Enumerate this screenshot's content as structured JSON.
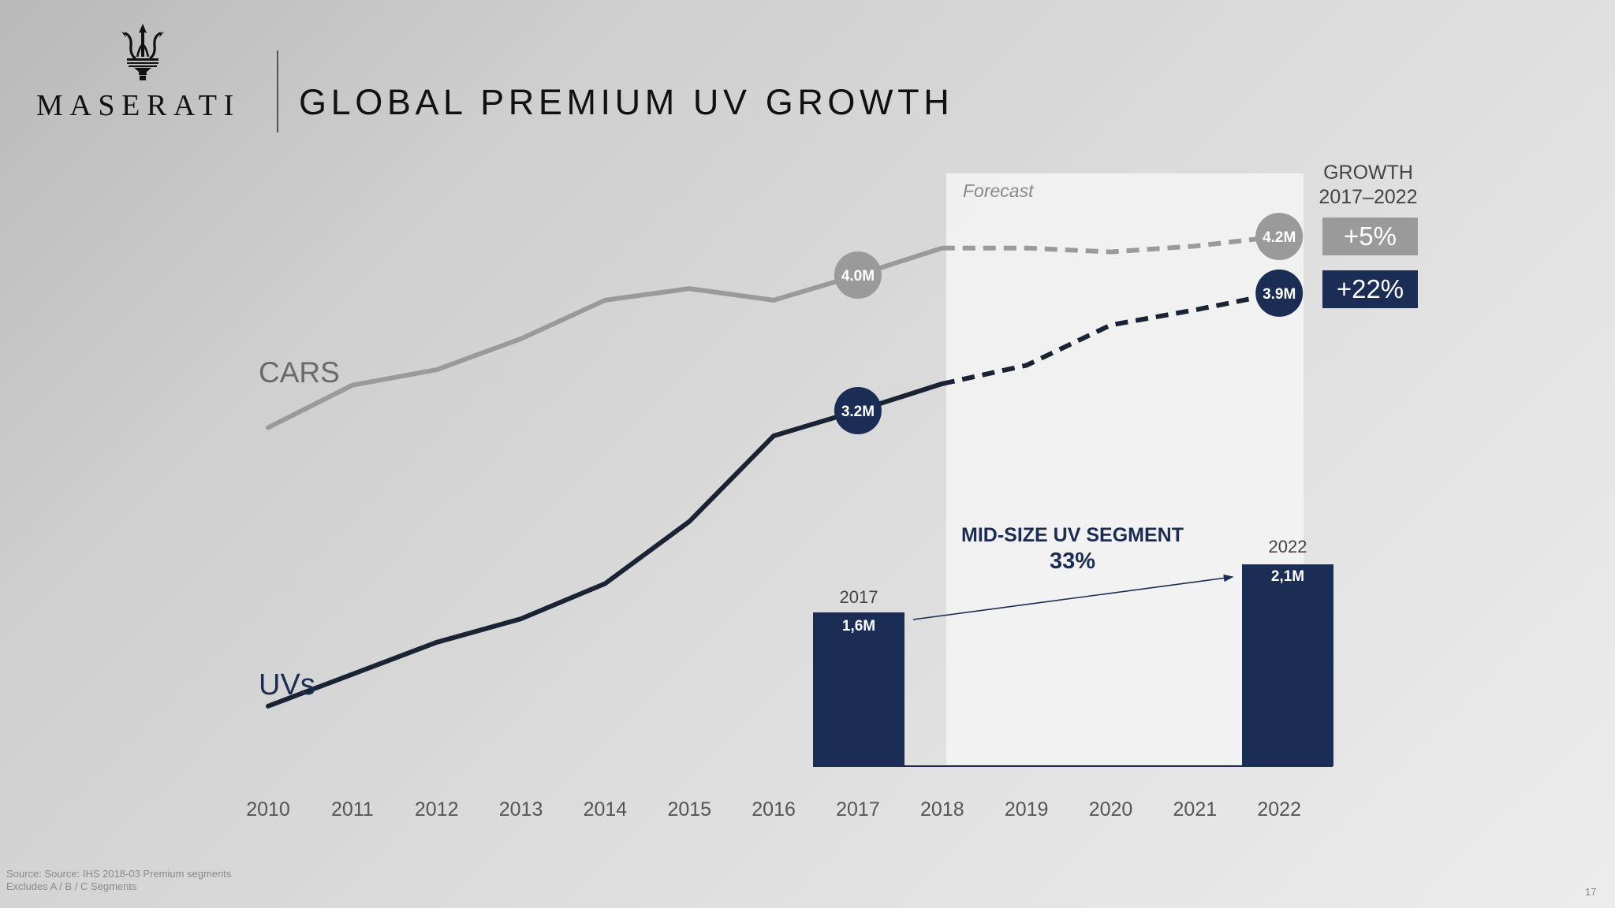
{
  "header": {
    "brand": "MASERATI",
    "title": "GLOBAL PREMIUM UV GROWTH",
    "logo_icon": "trident-icon"
  },
  "chart_data": {
    "type": "line",
    "title": "GLOBAL PREMIUM UV GROWTH",
    "xlabel": "",
    "ylabel": "",
    "x": [
      "2010",
      "2011",
      "2012",
      "2013",
      "2014",
      "2015",
      "2016",
      "2017",
      "2018",
      "2019",
      "2020",
      "2021",
      "2022"
    ],
    "forecast_region": {
      "label": "Forecast",
      "from": "2018",
      "to": "2022"
    },
    "series": [
      {
        "name": "CARS",
        "color": "#9a9a9a",
        "values": [
          3.21,
          3.43,
          3.51,
          3.67,
          3.87,
          3.93,
          3.87,
          4.0,
          4.14,
          4.14,
          4.12,
          4.15,
          4.2
        ],
        "forecast_from_index": 8,
        "labeled_points": [
          {
            "x": "2017",
            "label": "4.0M"
          },
          {
            "x": "2022",
            "label": "4.2M"
          }
        ]
      },
      {
        "name": "UVs",
        "color": "#1b2d54",
        "values": [
          1.44,
          1.63,
          1.82,
          1.96,
          2.17,
          2.54,
          3.05,
          3.2,
          3.36,
          3.47,
          3.71,
          3.8,
          3.9
        ],
        "forecast_from_index": 8,
        "labeled_points": [
          {
            "x": "2017",
            "label": "3.2M"
          },
          {
            "x": "2022",
            "label": "3.9M"
          }
        ]
      }
    ],
    "growth": {
      "heading_line1": "GROWTH",
      "heading_line2": "2017–2022",
      "cars": "+5%",
      "uvs": "+22%"
    },
    "inset": {
      "type": "bar",
      "title": "MID-SIZE UV SEGMENT",
      "change": "33%",
      "categories": [
        "2017",
        "2022"
      ],
      "values": [
        1.6,
        2.1
      ],
      "value_labels": [
        "1,6M",
        "2,1M"
      ],
      "color": "#1b2d54"
    }
  },
  "footer": {
    "source_line1": "Source: Source: IHS 2018-03 Premium segments",
    "source_line2": "Excludes A / B / C Segments",
    "page_number": "17"
  }
}
